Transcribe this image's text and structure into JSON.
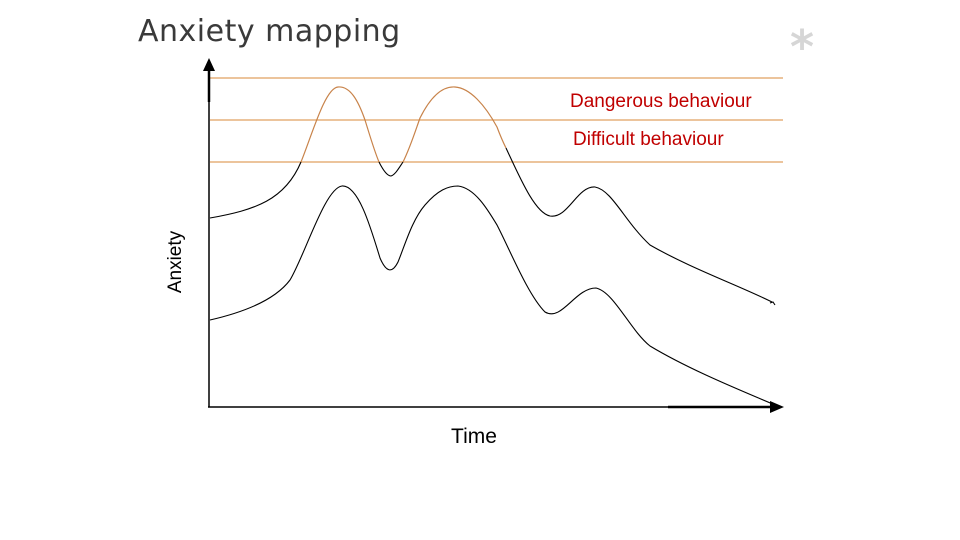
{
  "slide": {
    "title": "Anxiety mapping",
    "decoration_symbol": "*"
  },
  "diagram": {
    "y_axis_label": "Anxiety",
    "x_axis_label": "Time",
    "threshold_lines": [
      {
        "label": "Dangerous behaviour",
        "color": "#c00000"
      },
      {
        "label": "Difficult behaviour",
        "color": "#c00000"
      }
    ],
    "colors": {
      "threshold_line": "#e0a060",
      "above_threshold_curve": "#c8834a",
      "curve": "#000000",
      "axis": "#000000"
    }
  }
}
